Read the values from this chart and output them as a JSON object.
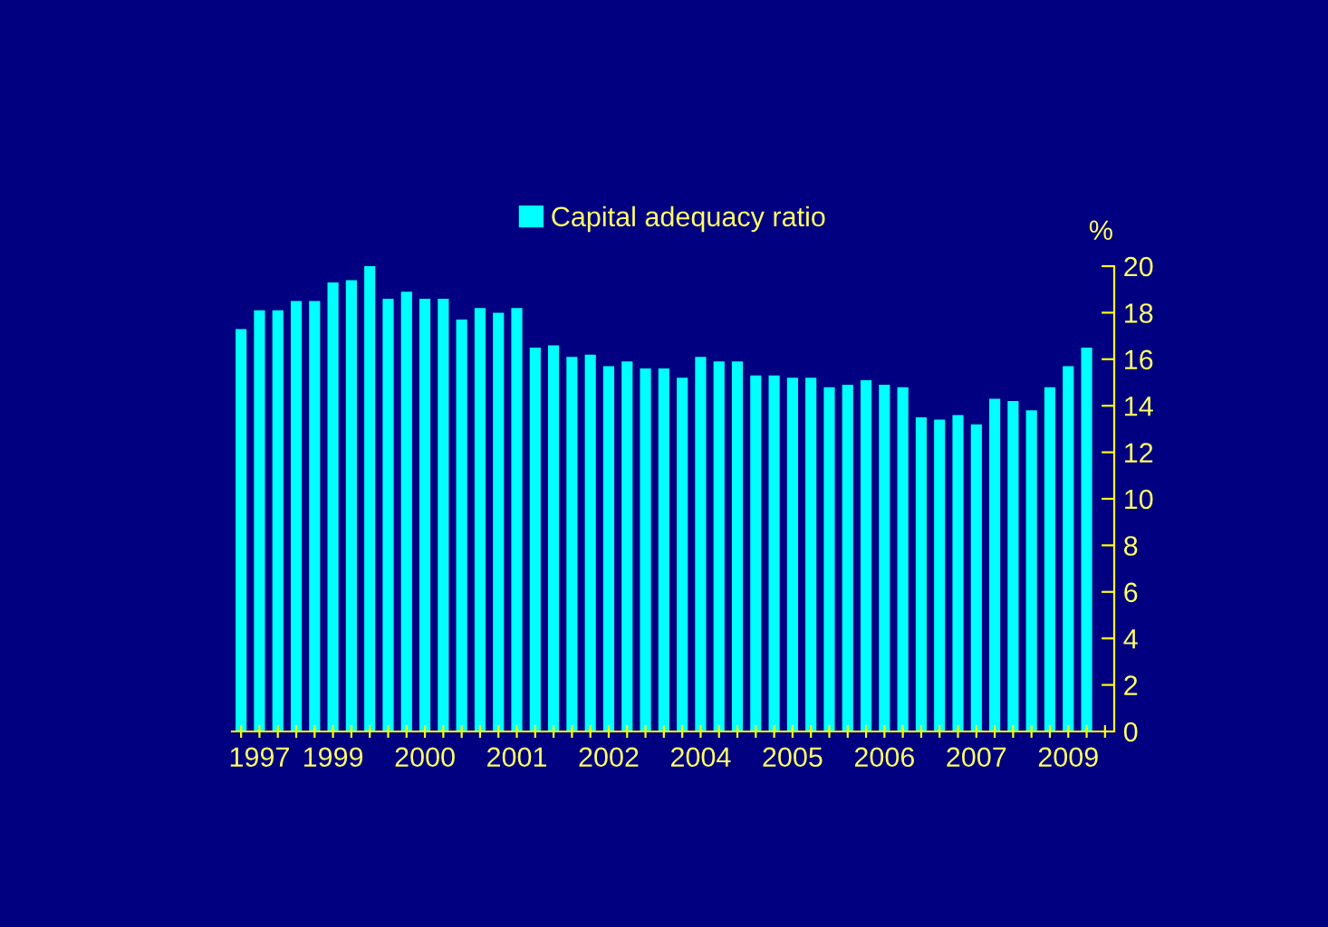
{
  "chart_data": {
    "type": "bar",
    "categories": [
      null,
      "1997",
      null,
      null,
      null,
      "1999",
      null,
      null,
      null,
      null,
      "2000",
      null,
      null,
      null,
      null,
      "2001",
      null,
      null,
      null,
      null,
      "2002",
      null,
      null,
      null,
      null,
      "2004",
      null,
      null,
      null,
      null,
      "2005",
      null,
      null,
      null,
      null,
      "2006",
      null,
      null,
      null,
      null,
      "2007",
      null,
      null,
      null,
      null,
      "2009",
      null,
      null
    ],
    "series": [
      {
        "name": "Capital adequacy ratio",
        "color": "#00ffff",
        "values": [
          17.3,
          18.1,
          18.1,
          18.5,
          18.5,
          19.3,
          19.4,
          20.0,
          18.6,
          18.9,
          18.6,
          18.6,
          17.7,
          18.2,
          18.0,
          18.2,
          16.5,
          16.6,
          16.1,
          16.2,
          15.7,
          15.9,
          15.6,
          15.6,
          15.2,
          16.1,
          15.9,
          15.9,
          15.3,
          15.3,
          15.2,
          15.2,
          14.8,
          14.9,
          15.1,
          14.9,
          14.8,
          13.5,
          13.4,
          13.6,
          13.2,
          14.3,
          14.2,
          13.8,
          14.8,
          15.7,
          16.5,
          null
        ]
      }
    ],
    "ylabel": "%",
    "ylim": [
      0,
      20
    ],
    "yticks": [
      0,
      2,
      4,
      6,
      8,
      10,
      12,
      14,
      16,
      18,
      20
    ],
    "grid": false,
    "legend": "top"
  }
}
